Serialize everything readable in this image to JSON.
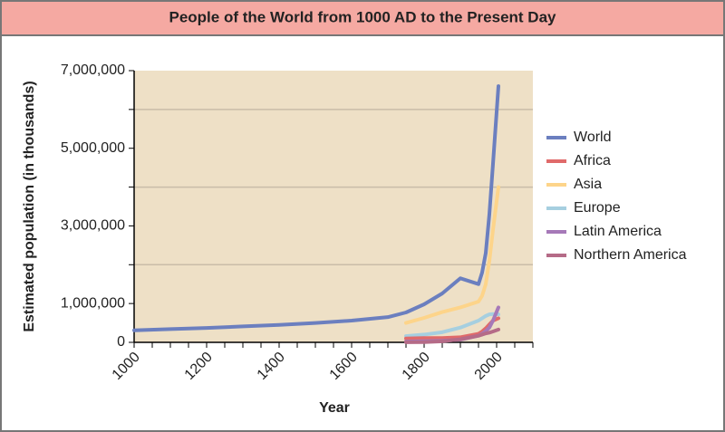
{
  "chart_data": {
    "type": "line",
    "title": "People of the World from 1000 AD to the Present Day",
    "x_label": "Year",
    "y_label": "Estimated population (in thousands)",
    "x": [
      1000,
      1100,
      1200,
      1300,
      1400,
      1500,
      1600,
      1700,
      1750,
      1800,
      1850,
      1900,
      1950,
      1960,
      1970,
      1980,
      1990,
      2005
    ],
    "series": [
      {
        "name": "World",
        "color": "#6b7fbf",
        "values": [
          310000,
          340000,
          370000,
          410000,
          450000,
          500000,
          560000,
          650000,
          770000,
          980000,
          1260000,
          1650000,
          1500000,
          1800000,
          2300000,
          3300000,
          4600000,
          6600000
        ]
      },
      {
        "name": "Africa",
        "color": "#e06a6a",
        "values": [
          null,
          null,
          null,
          null,
          null,
          null,
          null,
          null,
          100000,
          110000,
          110000,
          130000,
          220000,
          280000,
          360000,
          460000,
          560000,
          620000
        ]
      },
      {
        "name": "Asia",
        "color": "#fdd48a",
        "values": [
          null,
          null,
          null,
          null,
          null,
          null,
          null,
          null,
          500000,
          630000,
          780000,
          900000,
          1050000,
          1200000,
          1500000,
          2100000,
          2900000,
          4000000
        ]
      },
      {
        "name": "Europe",
        "color": "#a6cfe0",
        "values": [
          null,
          null,
          null,
          null,
          null,
          null,
          null,
          null,
          160000,
          200000,
          260000,
          380000,
          560000,
          620000,
          680000,
          720000,
          730000,
          720000
        ]
      },
      {
        "name": "Latin America",
        "color": "#a679b8",
        "values": [
          null,
          null,
          null,
          null,
          null,
          null,
          null,
          null,
          20000,
          30000,
          40000,
          70000,
          170000,
          220000,
          290000,
          380000,
          560000,
          900000
        ]
      },
      {
        "name": "Northern America",
        "color": "#b56b87",
        "values": [
          null,
          null,
          null,
          null,
          null,
          null,
          null,
          null,
          2000,
          7000,
          26000,
          80000,
          170000,
          200000,
          230000,
          250000,
          280000,
          330000
        ]
      }
    ],
    "xlim": [
      1000,
      2100
    ],
    "xticks": [
      1000,
      1200,
      1400,
      1600,
      1800,
      2000
    ],
    "xminorticks": [
      1050,
      1100,
      1150,
      1250,
      1300,
      1350,
      1450,
      1500,
      1550,
      1650,
      1700,
      1750,
      1850,
      1900,
      1950,
      2050,
      2100
    ],
    "ylim": [
      0,
      7000000
    ],
    "yticks": [
      0,
      {
        "value": 1000000,
        "label": "1,000,000"
      },
      {
        "value": 3000000,
        "label": "3,000,000"
      },
      {
        "value": 5000000,
        "label": "5,000,000"
      },
      {
        "value": 7000000,
        "label": "7,000,000"
      }
    ],
    "yminorticks": [
      2000000,
      4000000,
      6000000
    ],
    "grid": true,
    "legend": "right"
  }
}
